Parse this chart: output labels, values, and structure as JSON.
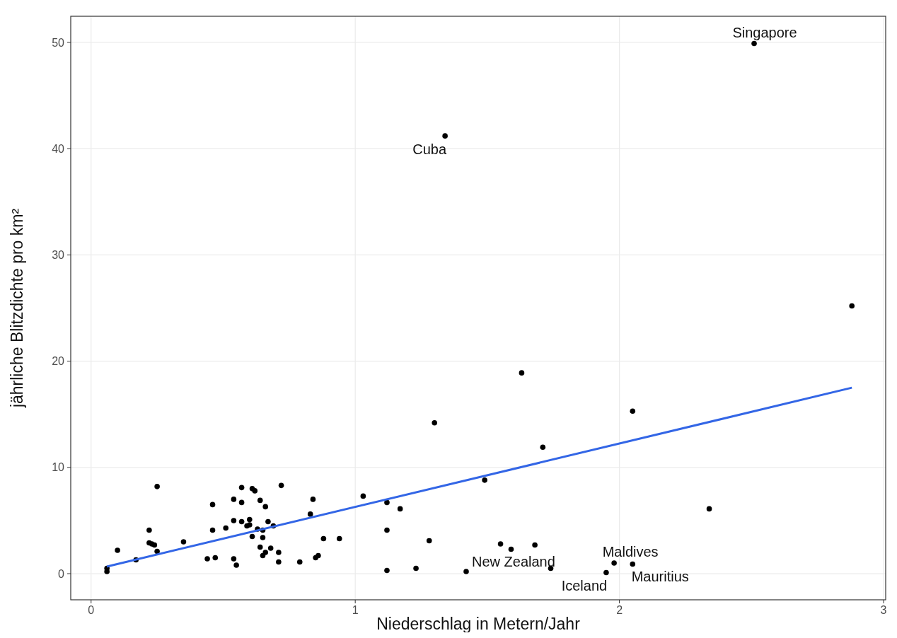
{
  "chart_data": {
    "type": "scatter",
    "xlabel": "Niederschlag in Metern/Jahr",
    "ylabel": "jährliche Blitzdichte pro km²",
    "xlim": [
      -0.077,
      3.008
    ],
    "ylim": [
      -2.46,
      52.46
    ],
    "xticks": [
      0,
      1,
      2,
      3
    ],
    "yticks": [
      0,
      10,
      20,
      30,
      40,
      50
    ],
    "grid": true,
    "series": [
      {
        "color": "#000000",
        "marker": "circle",
        "x": [
          0.06,
          0.06,
          0.1,
          0.17,
          0.22,
          0.22,
          0.23,
          0.24,
          0.25,
          0.25,
          0.35,
          0.44,
          0.46,
          0.46,
          0.47,
          0.51,
          0.54,
          0.55,
          0.54,
          0.54,
          0.57,
          0.57,
          0.57,
          0.59,
          0.6,
          0.6,
          0.61,
          0.61,
          0.62,
          0.63,
          0.64,
          0.65,
          0.64,
          0.65,
          0.65,
          0.66,
          0.66,
          0.67,
          0.68,
          0.69,
          0.71,
          0.71,
          0.72,
          0.79,
          0.83,
          0.84,
          0.85,
          0.86,
          0.88,
          0.94,
          1.03,
          1.12,
          1.12,
          1.12,
          1.17,
          1.23,
          1.28,
          1.3,
          1.34,
          1.42,
          1.49,
          1.55,
          1.59,
          1.63,
          1.68,
          1.71,
          1.74,
          1.95,
          1.98,
          2.05,
          2.05,
          2.34,
          2.51,
          2.88
        ],
        "values": [
          0.2,
          0.5,
          2.2,
          1.3,
          4.1,
          2.9,
          2.8,
          2.7,
          2.1,
          8.2,
          3.0,
          1.4,
          4.1,
          6.5,
          1.5,
          4.3,
          1.4,
          0.8,
          5.0,
          7.0,
          6.7,
          8.1,
          4.9,
          4.5,
          5.1,
          4.6,
          3.5,
          8.0,
          7.8,
          4.2,
          2.5,
          3.4,
          6.9,
          1.7,
          4.1,
          2.0,
          6.3,
          4.9,
          2.4,
          4.5,
          2.0,
          1.1,
          8.3,
          1.1,
          5.6,
          7.0,
          1.5,
          1.7,
          3.3,
          3.3,
          7.3,
          6.7,
          4.1,
          0.3,
          6.1,
          0.5,
          3.1,
          14.2,
          41.2,
          0.2,
          8.8,
          2.8,
          2.3,
          18.9,
          2.7,
          11.9,
          0.5,
          0.1,
          1.0,
          0.9,
          15.3,
          6.1,
          49.9,
          25.2
        ]
      },
      {
        "type": "line",
        "color": "#3366e6",
        "x": [
          0.06,
          2.88
        ],
        "values": [
          0.67,
          17.5
        ],
        "marker": "none"
      }
    ],
    "annotations": [
      {
        "text": "Singapore",
        "x": 2.51,
        "y": 49.9
      },
      {
        "text": "Cuba",
        "x": 1.34,
        "y": 41.2
      },
      {
        "text": "New Zealand",
        "x": 1.42,
        "y": 0.2
      },
      {
        "text": "Iceland",
        "x": 1.95,
        "y": 0.1
      },
      {
        "text": "Maldives",
        "x": 1.98,
        "y": 1.0
      },
      {
        "text": "Mauritius",
        "x": 2.05,
        "y": 0.9
      }
    ]
  }
}
